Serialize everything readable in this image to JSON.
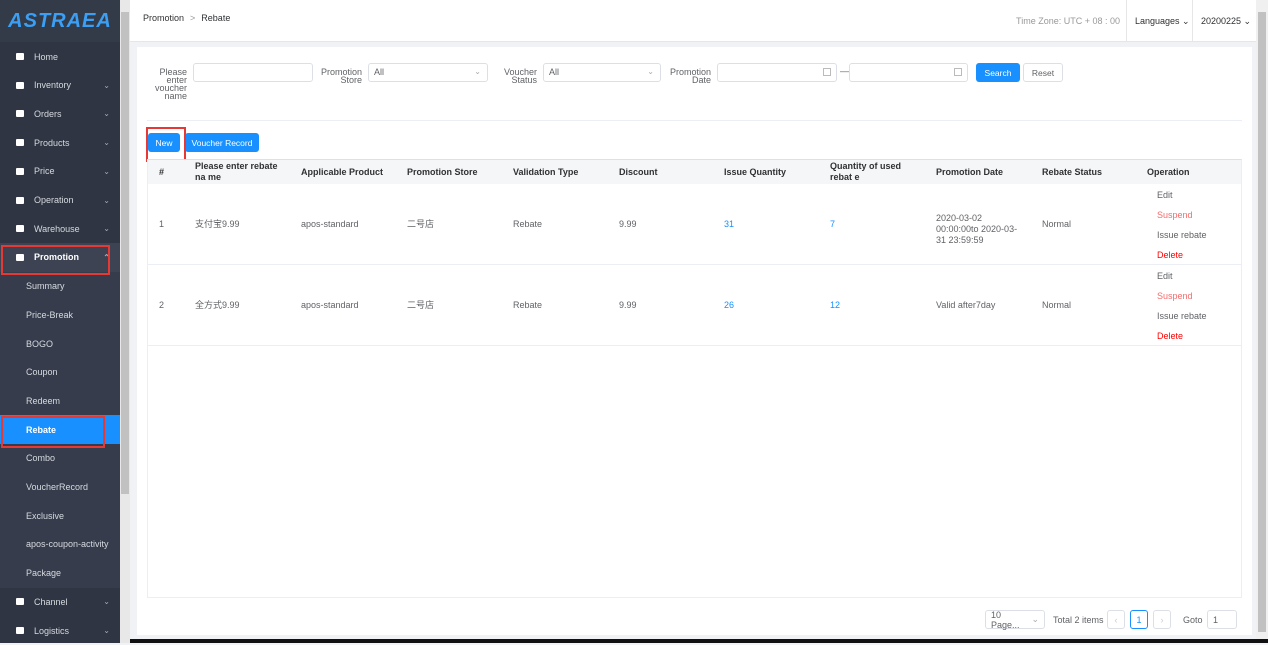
{
  "sidebar": {
    "logo": "ASTRAEA",
    "items": [
      {
        "label": "Home",
        "icon": "home-icon"
      },
      {
        "label": "Inventory",
        "icon": "monitor-icon",
        "chev": "⌄"
      },
      {
        "label": "Orders",
        "icon": "chart-icon",
        "chev": "⌄"
      },
      {
        "label": "Products",
        "icon": "bag-icon",
        "chev": "⌄"
      },
      {
        "label": "Price",
        "icon": "price-tag-icon",
        "chev": "⌄"
      },
      {
        "label": "Operation",
        "icon": "operation-icon",
        "chev": "⌄"
      },
      {
        "label": "Warehouse",
        "icon": "warehouse-icon",
        "chev": "⌄"
      },
      {
        "label": "Promotion",
        "icon": "promotion-icon",
        "chev": "⌃"
      }
    ],
    "sub": [
      "Summary",
      "Price-Break",
      "BOGO",
      "Coupon",
      "Redeem",
      "Rebate",
      "Combo",
      "VoucherRecord",
      "Exclusive",
      "apos-coupon-activity",
      "Package"
    ],
    "after": [
      {
        "label": "Channel",
        "icon": "bag-icon",
        "chev": "⌄"
      },
      {
        "label": "Logistics",
        "icon": "chart-icon",
        "chev": "⌄"
      }
    ]
  },
  "header": {
    "crumb1": "Promotion",
    "sep": ">",
    "crumb2": "Rebate",
    "timezone": "Time Zone: UTC + 08 : 00",
    "languages": "Languages ⌄",
    "version": "20200225 ⌄"
  },
  "filters": {
    "name_label": "Please enter voucher name",
    "name_value": "",
    "store_label": "Promotion Store",
    "store_value": "All",
    "status_label": "Voucher Status",
    "status_value": "All",
    "date_label": "Promotion Date",
    "date_sep": "—",
    "search": "Search",
    "reset": "Reset"
  },
  "actions": {
    "new": "New",
    "voucher_record": "Voucher Record"
  },
  "table": {
    "columns": [
      "#",
      "Please enter rebate na me",
      "Applicable Product",
      "Promotion Store",
      "Validation Type",
      "Discount",
      "Issue Quantity",
      "Quantity of used rebat e",
      "Promotion Date",
      "Rebate Status",
      "Operation"
    ],
    "rows": [
      [
        "1",
        "支付宝9.99",
        "apos-standard",
        "二号店",
        "Rebate",
        "9.99",
        "31",
        "7",
        "2020-03-02 00:00:00to 2020-03-31 23:59:59",
        "Normal"
      ],
      [
        "2",
        "全方式9.99",
        "apos-standard",
        "二号店",
        "Rebate",
        "9.99",
        "26",
        "12",
        "Valid after7day",
        "Normal"
      ]
    ],
    "ops": {
      "edit": "Edit",
      "suspend": "Suspend",
      "issue": "Issue rebate",
      "delete": "Delete"
    }
  },
  "pagination": {
    "page_size": "10 Page...",
    "total": "Total 2 items",
    "prev": "‹",
    "current": "1",
    "next": "›",
    "goto_label": "Goto",
    "goto_value": "1"
  },
  "colors": {
    "primary": "#1890ff",
    "danger": "#f00",
    "sidebar": "#2f3542",
    "highlight": "#e53935"
  }
}
